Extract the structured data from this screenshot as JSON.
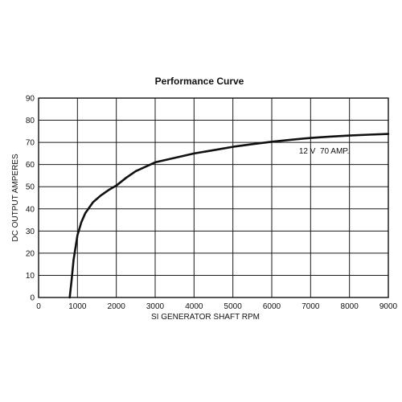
{
  "chart_data": {
    "type": "line",
    "title": "Performance Curve",
    "xlabel": "SI GENERATOR SHAFT RPM",
    "ylabel": "DC OUTPUT AMPERES",
    "xlim": [
      0,
      9000
    ],
    "ylim": [
      0,
      90
    ],
    "xticks": [
      "0",
      "1000",
      "2000",
      "3000",
      "4000",
      "5000",
      "6000",
      "7000",
      "8000",
      "9000"
    ],
    "yticks": [
      "0",
      "10",
      "20",
      "30",
      "40",
      "50",
      "60",
      "70",
      "80",
      "90"
    ],
    "grid": true,
    "annotation": "12 V  70 AMP.",
    "series": [
      {
        "x": [
          800,
          850,
          900,
          1000,
          1100,
          1200,
          1400,
          1600,
          1800,
          2000,
          2250,
          2500,
          3000,
          3500,
          4000,
          4500,
          5000,
          5500,
          6000,
          6500,
          7000,
          7500,
          8000,
          8500,
          9000
        ],
        "y": [
          0,
          8,
          17,
          28,
          34,
          38,
          43,
          46,
          48.5,
          50.5,
          54,
          57,
          61,
          63,
          65,
          66.5,
          68,
          69.2,
          70.3,
          71.2,
          72,
          72.6,
          73.1,
          73.5,
          73.8
        ]
      }
    ]
  }
}
